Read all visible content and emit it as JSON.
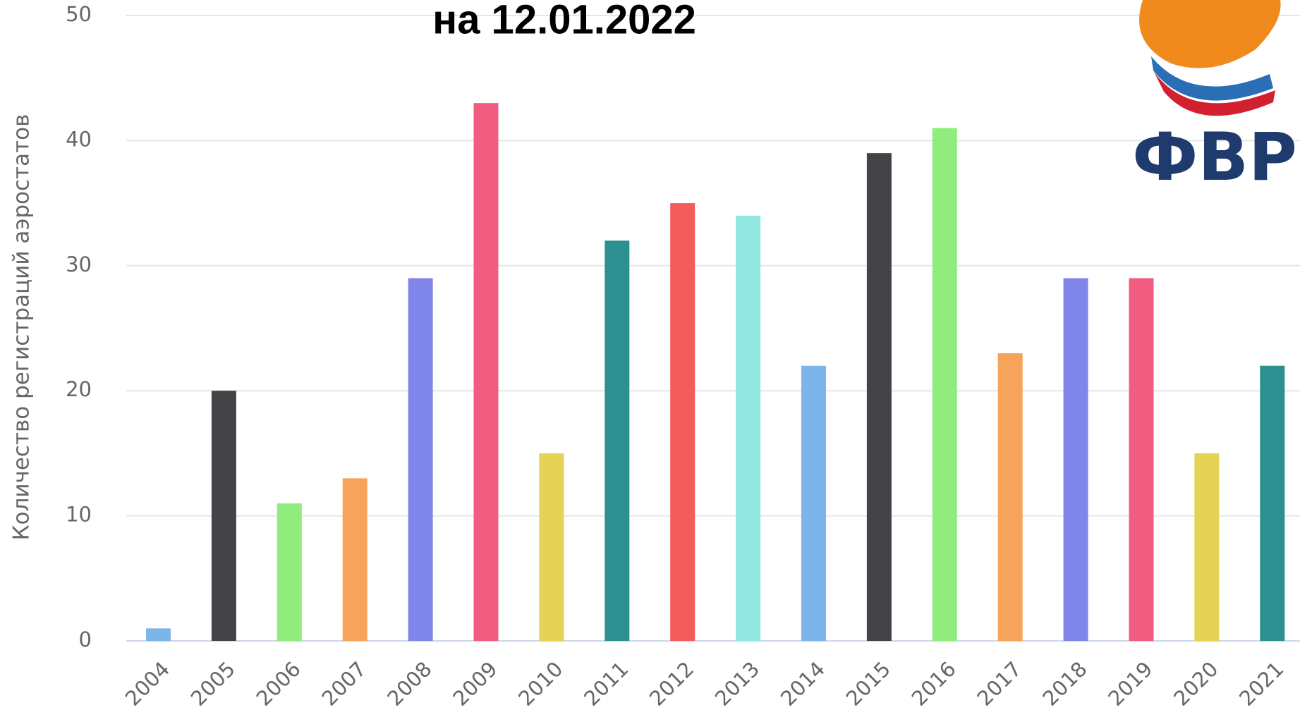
{
  "chart_data": {
    "type": "bar",
    "title": "на 12.01.2022",
    "y_label": "Количество регистраций аэростатов",
    "logo_text": "ФВР",
    "categories": [
      "2004",
      "2005",
      "2006",
      "2007",
      "2008",
      "2009",
      "2010",
      "2011",
      "2012",
      "2013",
      "2014",
      "2015",
      "2016",
      "2017",
      "2018",
      "2019",
      "2020",
      "2021"
    ],
    "values": [
      1,
      20,
      11,
      13,
      29,
      43,
      15,
      32,
      35,
      34,
      22,
      39,
      41,
      23,
      29,
      29,
      15,
      22
    ],
    "colors": [
      "#7cb5ec",
      "#434348",
      "#90ed7d",
      "#f7a35c",
      "#8085e9",
      "#f15c80",
      "#e4d354",
      "#2b908f",
      "#f45b5b",
      "#91e8e1",
      "#7cb5ec",
      "#434348",
      "#90ed7d",
      "#f7a35c",
      "#8085e9",
      "#f15c80",
      "#e4d354",
      "#2b908f"
    ],
    "ylim": [
      0,
      50
    ],
    "yticks": [
      0,
      10,
      20,
      30,
      40,
      50
    ],
    "grid": true
  }
}
